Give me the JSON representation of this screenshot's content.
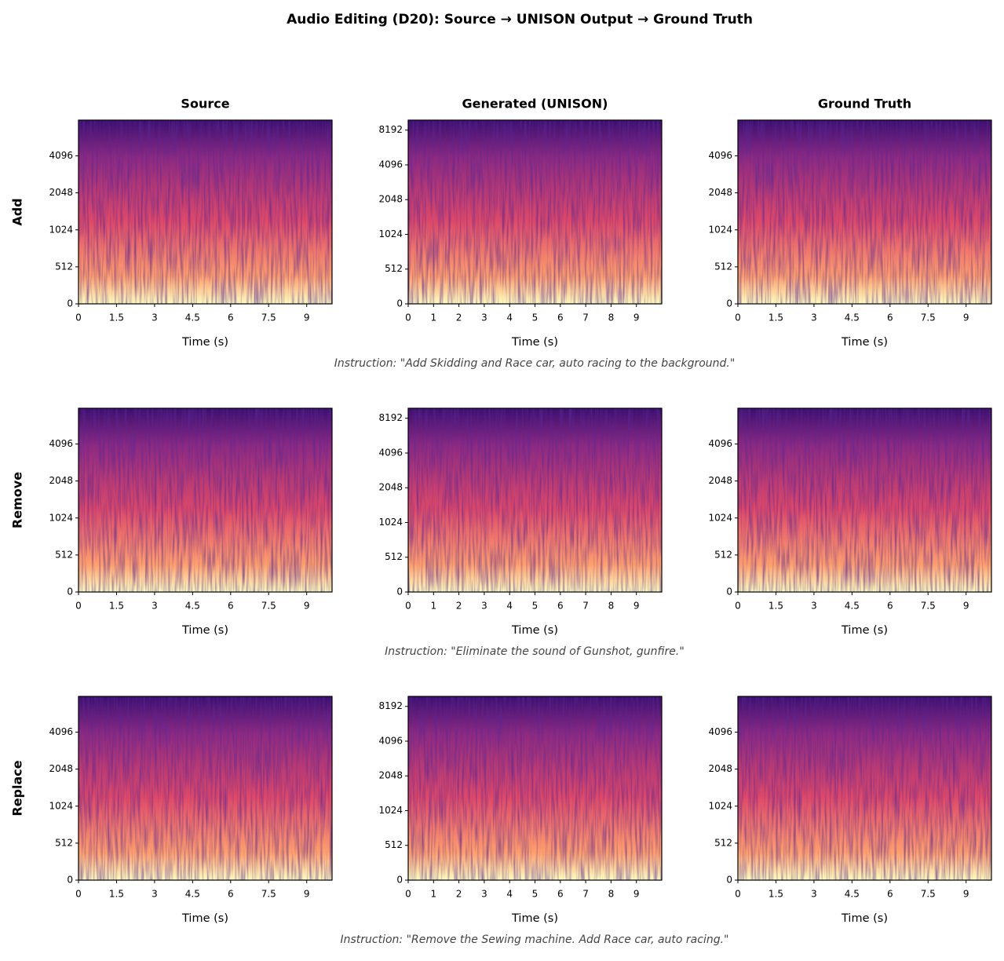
{
  "title": "Audio Editing (D20): Source → UNISON Output → Ground Truth",
  "instructions": [
    "Instruction: \"Add Skidding and Race car, auto racing to the background.\"",
    "Instruction: \"Eliminate the sound of Gunshot, gunfire.\"",
    "Instruction: \"Remove the Sewing machine. Add Race car, auto racing.\""
  ],
  "chart_data": [
    {
      "type": "spectrogram",
      "title": "Source",
      "ylabel": "Add",
      "xlabel": "Time (s)",
      "xlim": [
        0,
        10
      ],
      "xticks": [
        0,
        1.5,
        3,
        4.5,
        6,
        7.5,
        9
      ],
      "ylim": [
        0,
        8000
      ],
      "yticks": [
        0,
        512,
        1024,
        2048,
        4096
      ],
      "yscale": "symlog",
      "linthresh": 512,
      "colormap": "magma"
    },
    {
      "type": "spectrogram",
      "title": "Generated (UNISON)",
      "xlabel": "Time (s)",
      "xlim": [
        0,
        10
      ],
      "xticks": [
        0,
        1,
        2,
        3,
        4,
        5,
        6,
        7,
        8,
        9
      ],
      "ylim": [
        0,
        10000
      ],
      "yticks": [
        0,
        512,
        1024,
        2048,
        4096,
        8192
      ],
      "yscale": "symlog",
      "linthresh": 512,
      "colormap": "magma"
    },
    {
      "type": "spectrogram",
      "title": "Ground Truth",
      "xlabel": "Time (s)",
      "xlim": [
        0,
        10
      ],
      "xticks": [
        0,
        1.5,
        3,
        4.5,
        6,
        7.5,
        9
      ],
      "ylim": [
        0,
        8000
      ],
      "yticks": [
        0,
        512,
        1024,
        2048,
        4096
      ],
      "yscale": "symlog",
      "linthresh": 512,
      "colormap": "magma"
    },
    {
      "type": "spectrogram",
      "ylabel": "Remove",
      "xlabel": "Time (s)",
      "xlim": [
        0,
        10
      ],
      "xticks": [
        0,
        1.5,
        3,
        4.5,
        6,
        7.5,
        9
      ],
      "ylim": [
        0,
        8000
      ],
      "yticks": [
        0,
        512,
        1024,
        2048,
        4096
      ],
      "yscale": "symlog",
      "linthresh": 512,
      "colormap": "magma"
    },
    {
      "type": "spectrogram",
      "xlabel": "Time (s)",
      "xlim": [
        0,
        10
      ],
      "xticks": [
        0,
        1,
        2,
        3,
        4,
        5,
        6,
        7,
        8,
        9
      ],
      "ylim": [
        0,
        10000
      ],
      "yticks": [
        0,
        512,
        1024,
        2048,
        4096,
        8192
      ],
      "yscale": "symlog",
      "linthresh": 512,
      "colormap": "magma"
    },
    {
      "type": "spectrogram",
      "xlabel": "Time (s)",
      "xlim": [
        0,
        10
      ],
      "xticks": [
        0,
        1.5,
        3,
        4.5,
        6,
        7.5,
        9
      ],
      "ylim": [
        0,
        8000
      ],
      "yticks": [
        0,
        512,
        1024,
        2048,
        4096
      ],
      "yscale": "symlog",
      "linthresh": 512,
      "colormap": "magma"
    },
    {
      "type": "spectrogram",
      "ylabel": "Replace",
      "xlabel": "Time (s)",
      "xlim": [
        0,
        10
      ],
      "xticks": [
        0,
        1.5,
        3,
        4.5,
        6,
        7.5,
        9
      ],
      "ylim": [
        0,
        8000
      ],
      "yticks": [
        0,
        512,
        1024,
        2048,
        4096
      ],
      "yscale": "symlog",
      "linthresh": 512,
      "colormap": "magma"
    },
    {
      "type": "spectrogram",
      "xlabel": "Time (s)",
      "xlim": [
        0,
        10
      ],
      "xticks": [
        0,
        1,
        2,
        3,
        4,
        5,
        6,
        7,
        8,
        9
      ],
      "ylim": [
        0,
        10000
      ],
      "yticks": [
        0,
        512,
        1024,
        2048,
        4096,
        8192
      ],
      "yscale": "symlog",
      "linthresh": 512,
      "colormap": "magma"
    },
    {
      "type": "spectrogram",
      "xlabel": "Time (s)",
      "xlim": [
        0,
        10
      ],
      "xticks": [
        0,
        1.5,
        3,
        4.5,
        6,
        7.5,
        9
      ],
      "ylim": [
        0,
        8000
      ],
      "yticks": [
        0,
        512,
        1024,
        2048,
        4096
      ],
      "yscale": "symlog",
      "linthresh": 512,
      "colormap": "magma"
    }
  ]
}
